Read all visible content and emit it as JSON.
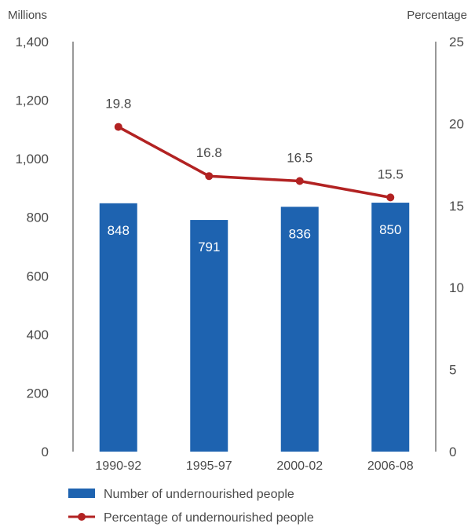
{
  "chart_data": {
    "type": "bar",
    "categories": [
      "1990-92",
      "1995-97",
      "2000-02",
      "2006-08"
    ],
    "series": [
      {
        "name": "Number of undernourished people",
        "type": "bar",
        "axis": "left",
        "values": [
          848,
          791,
          836,
          850
        ],
        "labels": [
          "848",
          "791",
          "836",
          "850"
        ],
        "color": "#1e63b0"
      },
      {
        "name": "Percentage of undernourished people",
        "type": "line",
        "axis": "right",
        "values": [
          19.8,
          16.8,
          16.5,
          15.5
        ],
        "labels": [
          "19.8",
          "16.8",
          "16.5",
          "15.5"
        ],
        "color": "#b22222"
      }
    ],
    "ylabel_left": "Millions",
    "ylabel_right": "Percentage",
    "ylim_left": [
      0,
      1400
    ],
    "ylim_right": [
      0,
      25
    ],
    "yticks_left": [
      "0",
      "200",
      "400",
      "600",
      "800",
      "1,000",
      "1,200",
      "1,400"
    ],
    "yticks_right": [
      "0",
      "5",
      "10",
      "15",
      "20",
      "25"
    ],
    "grid": false,
    "legend_position": "bottom-left"
  }
}
